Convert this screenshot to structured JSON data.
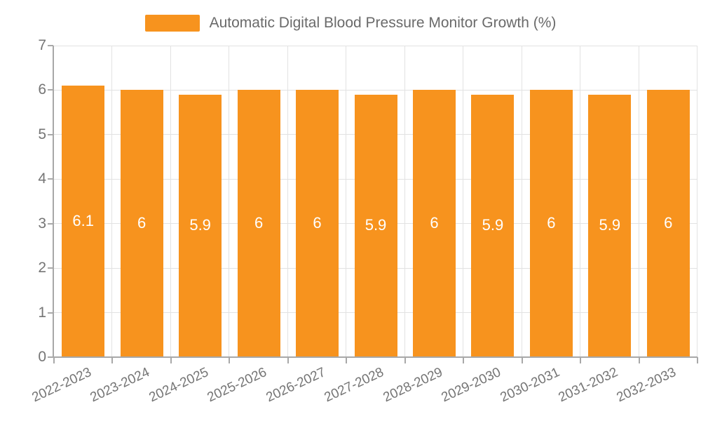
{
  "legend": {
    "label": "Automatic Digital Blood Pressure Monitor Growth (%)"
  },
  "chart_data": {
    "type": "bar",
    "title": "Automatic Digital Blood Pressure Monitor Growth (%)",
    "categories": [
      "2022-2023",
      "2023-2024",
      "2024-2025",
      "2025-2026",
      "2026-2027",
      "2027-2028",
      "2028-2029",
      "2029-2030",
      "2030-2031",
      "2031-2032",
      "2032-2033"
    ],
    "values": [
      6.1,
      6,
      5.9,
      6,
      6,
      5.9,
      6,
      5.9,
      6,
      5.9,
      6
    ],
    "bar_labels": [
      "6.1",
      "6",
      "5.9",
      "6",
      "6",
      "5.9",
      "6",
      "5.9",
      "6",
      "5.9",
      "6"
    ],
    "xlabel": "",
    "ylabel": "",
    "ylim": [
      0,
      7
    ],
    "yticks": [
      0,
      1,
      2,
      3,
      4,
      5,
      6,
      7
    ],
    "grid": true,
    "legend_position": "top",
    "colors": {
      "bar": "#F7931E",
      "grid": "#E2E2E2",
      "axis": "#A8A8A8",
      "tick_label": "#757575",
      "legend_text": "#6A6A6A",
      "value_label": "#FFFFFF"
    }
  }
}
